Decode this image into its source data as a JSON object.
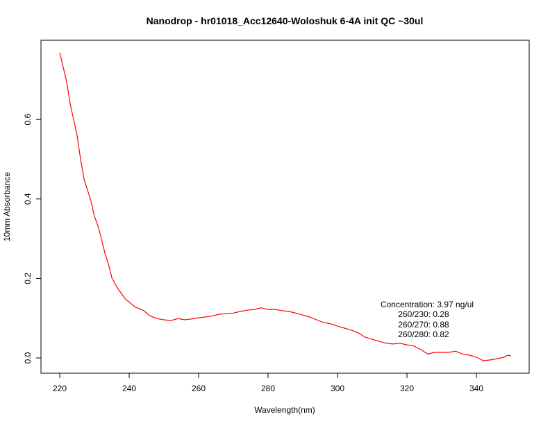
{
  "chart_data": {
    "type": "line",
    "title": "Nanodrop - hr01018_Acc12640-Woloshuk 6-4A init QC ~30ul",
    "xlabel": "Wavelength(nm)",
    "ylabel": "10mm Absorbance",
    "xlim": [
      213.5,
      354.5
    ],
    "ylim": [
      -0.038,
      0.8
    ],
    "xticks": [
      220,
      240,
      260,
      280,
      300,
      320,
      340
    ],
    "yticks": [
      0.0,
      0.2,
      0.4,
      0.6
    ],
    "ytick_labels": [
      "0.0",
      "0.2",
      "0.4",
      "0.6"
    ],
    "grid": false,
    "series": [
      {
        "name": "absorbance",
        "color": "#ff0000",
        "x": [
          220,
          222,
          223,
          225,
          226,
          227,
          229,
          230,
          231,
          232,
          233,
          234,
          235,
          236,
          237,
          238,
          239,
          240,
          241,
          242,
          244,
          246,
          248,
          250,
          252,
          254,
          256,
          258,
          260,
          262,
          264,
          266,
          268,
          270,
          272,
          274,
          276,
          278,
          280,
          282,
          284,
          286,
          288,
          290,
          292,
          294,
          296,
          298,
          300,
          302,
          304,
          306,
          308,
          310,
          312,
          314,
          316,
          318,
          320,
          322,
          324,
          326,
          328,
          330,
          332,
          334,
          336,
          338,
          340,
          342,
          344,
          346,
          348,
          349,
          350
        ],
        "y": [
          0.768,
          0.695,
          0.64,
          0.56,
          0.5,
          0.45,
          0.395,
          0.356,
          0.333,
          0.3,
          0.264,
          0.237,
          0.202,
          0.185,
          0.171,
          0.159,
          0.147,
          0.141,
          0.133,
          0.127,
          0.12,
          0.106,
          0.099,
          0.096,
          0.094,
          0.099,
          0.096,
          0.098,
          0.101,
          0.103,
          0.106,
          0.11,
          0.112,
          0.113,
          0.117,
          0.12,
          0.122,
          0.126,
          0.122,
          0.122,
          0.119,
          0.117,
          0.113,
          0.108,
          0.103,
          0.096,
          0.089,
          0.086,
          0.08,
          0.075,
          0.07,
          0.063,
          0.052,
          0.047,
          0.042,
          0.037,
          0.035,
          0.037,
          0.033,
          0.03,
          0.021,
          0.01,
          0.014,
          0.014,
          0.014,
          0.017,
          0.01,
          0.007,
          0.002,
          -0.007,
          -0.005,
          -0.002,
          0.002,
          0.007,
          0.005
        ]
      }
    ],
    "annotations": [
      "Concentration: 3.97 ng/ul",
      "260/230: 0.28",
      "260/270: 0.88",
      "260/280: 0.82"
    ]
  }
}
